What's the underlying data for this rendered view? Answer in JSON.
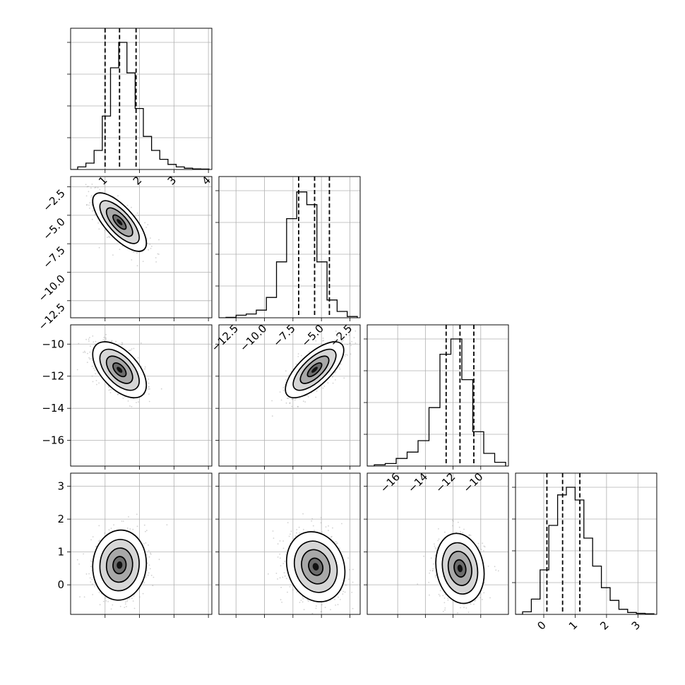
{
  "chart_data": {
    "type": "corner",
    "grid": true,
    "n_params": 4,
    "quantiles": [
      0.16,
      0.5,
      0.84
    ],
    "parameters": [
      {
        "ticks": [
          1,
          2,
          3,
          4
        ],
        "tick_labels": [
          "1",
          "2",
          "3",
          "4"
        ],
        "range": [
          0.0,
          4.1
        ],
        "quantile_values": [
          1.0,
          1.42,
          1.9
        ],
        "hist": [
          0.02,
          0.05,
          0.15,
          0.42,
          0.8,
          1.0,
          0.76,
          0.48,
          0.26,
          0.15,
          0.08,
          0.04,
          0.02,
          0.01,
          0.005,
          0.003
        ]
      },
      {
        "ticks": [
          -12.5,
          -10.0,
          -7.5,
          -5.0,
          -2.5
        ],
        "tick_labels": [
          "−12.5",
          "−10.0",
          "−7.5",
          "−5.0",
          "−2.5"
        ],
        "range": [
          -14.0,
          -1.6
        ],
        "quantile_values": [
          -7.0,
          -5.6,
          -4.3
        ],
        "hist": [
          0.003,
          0.02,
          0.03,
          0.06,
          0.16,
          0.44,
          0.78,
          0.99,
          0.89,
          0.44,
          0.14,
          0.05,
          0.01
        ]
      },
      {
        "ticks": [
          -16,
          -14,
          -12,
          -10
        ],
        "tick_labels": [
          "−16",
          "−14",
          "−12",
          "−10"
        ],
        "range": [
          -18.2,
          -8.0
        ],
        "quantile_values": [
          -12.5,
          -11.5,
          -10.5
        ],
        "hist": [
          0.01,
          0.02,
          0.06,
          0.11,
          0.2,
          0.46,
          0.88,
          1.0,
          0.68,
          0.27,
          0.1,
          0.03
        ]
      },
      {
        "ticks": [
          0,
          1,
          2,
          3
        ],
        "tick_labels": [
          "0",
          "1",
          "2",
          "3"
        ],
        "range": [
          -0.9,
          3.6
        ],
        "quantile_values": [
          0.1,
          0.6,
          1.15
        ],
        "hist": [
          0.02,
          0.12,
          0.35,
          0.7,
          0.94,
          1.0,
          0.9,
          0.6,
          0.38,
          0.21,
          0.11,
          0.04,
          0.015,
          0.008,
          0.005
        ]
      }
    ],
    "row_axis_ticks": {
      "1": {
        "ticks": [
          -2.5,
          -5.0,
          -7.5,
          -10.0,
          -12.5
        ],
        "tick_labels": [
          "−2.5",
          "−5.0",
          "−7.5",
          "−10.0",
          "−12.5"
        ],
        "range": [
          -14.0,
          -1.6
        ]
      },
      "2": {
        "ticks": [
          -10,
          -12,
          -14,
          -16
        ],
        "tick_labels": [
          "−10",
          "−12",
          "−14",
          "−16"
        ],
        "range": [
          -17.6,
          -8.8
        ]
      },
      "3": {
        "ticks": [
          3,
          2,
          1,
          0
        ],
        "tick_labels": [
          "3",
          "2",
          "1",
          "0"
        ],
        "range": [
          -0.9,
          3.4
        ]
      }
    },
    "pairs": [
      {
        "row": 1,
        "col": 0,
        "center": [
          1.42,
          -5.6
        ],
        "spread": [
          0.38,
          1.25
        ],
        "rho": -0.72
      },
      {
        "row": 2,
        "col": 0,
        "center": [
          1.42,
          -11.6
        ],
        "spread": [
          0.38,
          0.85
        ],
        "rho": -0.55
      },
      {
        "row": 2,
        "col": 1,
        "center": [
          -5.6,
          -11.6
        ],
        "spread": [
          1.25,
          0.85
        ],
        "rho": 0.7
      },
      {
        "row": 3,
        "col": 0,
        "center": [
          1.42,
          0.6
        ],
        "spread": [
          0.38,
          0.52
        ],
        "rho": 0.05
      },
      {
        "row": 3,
        "col": 1,
        "center": [
          -5.5,
          0.55
        ],
        "spread": [
          1.25,
          0.52
        ],
        "rho": -0.15
      },
      {
        "row": 3,
        "col": 2,
        "center": [
          -11.5,
          0.5
        ],
        "spread": [
          0.85,
          0.52
        ],
        "rho": -0.15
      }
    ]
  }
}
